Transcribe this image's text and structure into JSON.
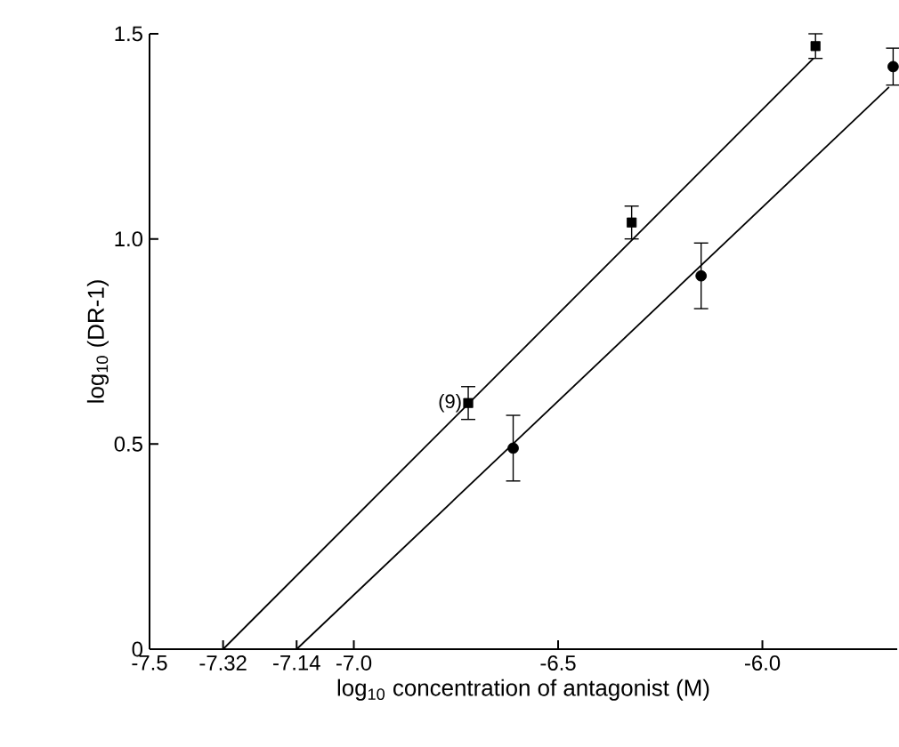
{
  "chart_data": {
    "type": "scatter",
    "xlabel": "log$_{10}$ concentration of antagonist (M)",
    "ylabel": "log$_{10}$ (DR-1)",
    "xlim": [
      -7.5,
      -5.67
    ],
    "xticks": [
      -7.5,
      -7.32,
      -7.14,
      {
        "value": -7.0,
        "label": "-7.0"
      },
      -6.5,
      {
        "value": -6.0,
        "label": "-6.0"
      }
    ],
    "ylim": [
      0,
      1.5
    ],
    "yticks": [
      0,
      0.5,
      {
        "value": 1.0,
        "label": "1.0"
      },
      1.5
    ],
    "series": [
      {
        "marker": "square",
        "color": "#000000",
        "x": [
          -6.72,
          -6.32,
          -5.87
        ],
        "values": [
          0.6,
          1.04,
          1.47
        ],
        "errors": [
          0.04,
          0.04,
          0.03
        ]
      },
      {
        "marker": "circle",
        "color": "#000000",
        "x": [
          -6.61,
          -6.15,
          -5.68
        ],
        "values": [
          0.49,
          0.91,
          1.42
        ],
        "errors": [
          0.08,
          0.08,
          0.045
        ]
      },
      {
        "type": "line",
        "color": "#000000",
        "x": [
          -7.32,
          -5.875
        ],
        "values": [
          0,
          1.44
        ]
      },
      {
        "type": "line",
        "color": "#000000",
        "x": [
          -7.14,
          -5.69
        ],
        "values": [
          0,
          1.37
        ]
      }
    ],
    "annotations": [
      {
        "text": "(9)",
        "x": -6.72,
        "y": 0.6
      }
    ]
  }
}
